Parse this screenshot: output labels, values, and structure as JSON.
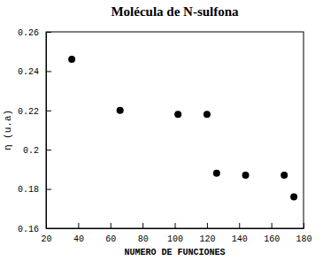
{
  "chart_data": {
    "type": "scatter",
    "title": "Molécula de N-sulfona",
    "x_label": "NUMERO DE FUNCIONES",
    "y_label": "η (u.a)",
    "x": [
      36,
      66,
      102,
      120,
      126,
      144,
      168,
      174
    ],
    "values": [
      0.246,
      0.22,
      0.218,
      0.218,
      0.188,
      0.187,
      0.187,
      0.176
    ],
    "color": "#000000",
    "marker": "circle",
    "xlim": [
      20,
      180
    ],
    "xticks": [
      20,
      40,
      60,
      80,
      100,
      120,
      140,
      160,
      180
    ],
    "ylim": [
      0.16,
      0.26
    ],
    "yticks": [
      0.16,
      0.18,
      0.2,
      0.22,
      0.24,
      0.26
    ],
    "grid": false
  }
}
